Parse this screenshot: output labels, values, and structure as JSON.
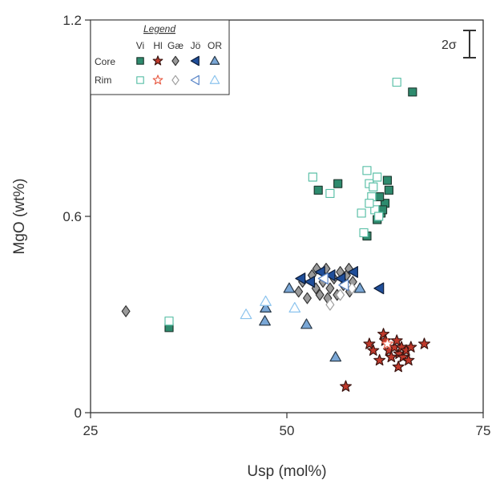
{
  "chart_data": {
    "type": "scatter",
    "xlabel": "Usp (mol%)",
    "ylabel": "MgO (wt%)",
    "xlim": [
      25,
      75
    ],
    "ylim": [
      0,
      1.2
    ],
    "x_ticks": [
      "25",
      "50",
      "75"
    ],
    "y_ticks": [
      "0",
      "0.6",
      "1.2"
    ],
    "grid": false,
    "legend": {
      "title": "Legend",
      "position": "top-left",
      "columns": [
        "Vi",
        "Hl",
        "Gæ",
        "Jö",
        "OR"
      ],
      "rows": [
        "Core",
        "Rim"
      ]
    },
    "annotation": "2σ",
    "annotation_position": "top-right",
    "series": [
      {
        "name": "Vi",
        "row": "Core",
        "marker": "square",
        "filled": true,
        "fill": "#2e8b6e",
        "stroke": "#1f3a30",
        "points": [
          [
            35,
            0.26
          ],
          [
            54,
            0.68
          ],
          [
            56.5,
            0.7
          ],
          [
            61.5,
            0.59
          ],
          [
            62,
            0.61
          ],
          [
            62.5,
            0.64
          ],
          [
            63,
            0.68
          ],
          [
            62.8,
            0.71
          ],
          [
            61.8,
            0.66
          ],
          [
            60.2,
            0.54
          ],
          [
            62.2,
            0.62
          ],
          [
            66,
            0.98
          ]
        ]
      },
      {
        "name": "Vi",
        "row": "Rim",
        "marker": "square",
        "filled": false,
        "fill": "#ffffff",
        "stroke": "#5cc0a8",
        "points": [
          [
            35,
            0.28
          ],
          [
            53.3,
            0.72
          ],
          [
            55.5,
            0.67
          ],
          [
            59.5,
            0.61
          ],
          [
            59.8,
            0.55
          ],
          [
            60.2,
            0.74
          ],
          [
            60.5,
            0.7
          ],
          [
            60.8,
            0.66
          ],
          [
            61.2,
            0.62
          ],
          [
            61.5,
            0.72
          ],
          [
            60.5,
            0.64
          ],
          [
            61,
            0.69
          ],
          [
            61.7,
            0.6
          ],
          [
            64,
            1.01
          ]
        ]
      },
      {
        "name": "Hl",
        "row": "Core",
        "marker": "star",
        "filled": true,
        "fill": "#c0392b",
        "stroke": "#3a1410",
        "points": [
          [
            57.5,
            0.08
          ],
          [
            60.5,
            0.21
          ],
          [
            61,
            0.19
          ],
          [
            61.8,
            0.16
          ],
          [
            62.3,
            0.24
          ],
          [
            62.5,
            0.22
          ],
          [
            63,
            0.19
          ],
          [
            63.3,
            0.17
          ],
          [
            63.7,
            0.2
          ],
          [
            64,
            0.22
          ],
          [
            64.2,
            0.14
          ],
          [
            64.3,
            0.18
          ],
          [
            64.6,
            0.2
          ],
          [
            64.8,
            0.17
          ],
          [
            65.2,
            0.19
          ],
          [
            65.5,
            0.16
          ],
          [
            65.8,
            0.2
          ],
          [
            67.5,
            0.21
          ]
        ]
      },
      {
        "name": "Hl",
        "row": "Rim",
        "marker": "star",
        "filled": false,
        "fill": "#ffffff",
        "stroke": "#e8604a",
        "points": [
          [
            62.8,
            0.21
          ]
        ]
      },
      {
        "name": "Gæ",
        "row": "Core",
        "marker": "diamond",
        "filled": true,
        "fill": "#9a9a9a",
        "stroke": "#333333",
        "points": [
          [
            29.5,
            0.31
          ],
          [
            51.5,
            0.37
          ],
          [
            52,
            0.4
          ],
          [
            52.6,
            0.35
          ],
          [
            53.2,
            0.42
          ],
          [
            53.7,
            0.38
          ],
          [
            54.2,
            0.36
          ],
          [
            54.6,
            0.4
          ],
          [
            55,
            0.44
          ],
          [
            55.5,
            0.38
          ],
          [
            56,
            0.41
          ],
          [
            56.4,
            0.36
          ],
          [
            56.8,
            0.43
          ],
          [
            57.2,
            0.39
          ],
          [
            57.6,
            0.42
          ],
          [
            58,
            0.37
          ],
          [
            58.4,
            0.4
          ],
          [
            55.2,
            0.35
          ],
          [
            53.8,
            0.44
          ],
          [
            57.9,
            0.44
          ]
        ]
      },
      {
        "name": "Gæ",
        "row": "Rim",
        "marker": "diamond",
        "filled": false,
        "fill": "#ffffff",
        "stroke": "#a0a0a0",
        "points": [
          [
            55.5,
            0.33
          ],
          [
            56.8,
            0.36
          ],
          [
            58.3,
            0.38
          ]
        ]
      },
      {
        "name": "Jö",
        "row": "Core",
        "marker": "tri-left",
        "filled": true,
        "fill": "#1f4e9a",
        "stroke": "#0e1e3a",
        "points": [
          [
            51.8,
            0.41
          ],
          [
            53,
            0.4
          ],
          [
            54.3,
            0.43
          ],
          [
            55.6,
            0.42
          ],
          [
            56.9,
            0.41
          ],
          [
            58.5,
            0.43
          ],
          [
            61.8,
            0.38
          ]
        ]
      },
      {
        "name": "Jö",
        "row": "Rim",
        "marker": "tri-left",
        "filled": false,
        "fill": "#ffffff",
        "stroke": "#5a86c8",
        "points": [
          [
            54.7,
            0.41
          ],
          [
            57.3,
            0.39
          ]
        ]
      },
      {
        "name": "OR",
        "row": "Core",
        "marker": "tri-up",
        "filled": true,
        "fill": "#7aa7d6",
        "stroke": "#2a3a4a",
        "points": [
          [
            47.2,
            0.28
          ],
          [
            47.3,
            0.32
          ],
          [
            50.3,
            0.38
          ],
          [
            52.5,
            0.27
          ],
          [
            56.2,
            0.17
          ],
          [
            59.3,
            0.38
          ]
        ]
      },
      {
        "name": "OR",
        "row": "Rim",
        "marker": "tri-up",
        "filled": false,
        "fill": "#ffffff",
        "stroke": "#8cc4ee",
        "points": [
          [
            44.8,
            0.3
          ],
          [
            47.3,
            0.34
          ],
          [
            51,
            0.32
          ]
        ]
      }
    ]
  }
}
